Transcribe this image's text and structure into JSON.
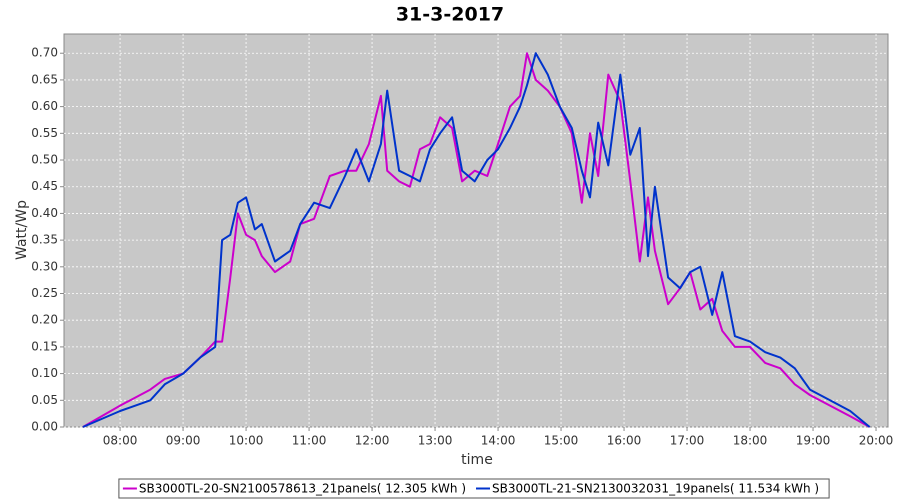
{
  "chart_data": {
    "type": "line",
    "title": "31-3-2017",
    "x_label": "time",
    "y_label": "Watt/Wp",
    "x": [
      7.41,
      8.0,
      8.48,
      8.71,
      9.0,
      9.27,
      9.51,
      9.62,
      9.75,
      9.87,
      10.0,
      10.14,
      10.25,
      10.46,
      10.7,
      10.86,
      11.08,
      11.33,
      11.57,
      11.75,
      11.95,
      12.14,
      12.24,
      12.43,
      12.6,
      12.76,
      12.92,
      13.08,
      13.27,
      13.43,
      13.63,
      13.83,
      14.0,
      14.19,
      14.35,
      14.46,
      14.6,
      14.79,
      14.98,
      15.17,
      15.33,
      15.46,
      15.59,
      15.75,
      15.94,
      16.1,
      16.25,
      16.38,
      16.49,
      16.7,
      16.89,
      17.05,
      17.21,
      17.4,
      17.56,
      17.76,
      18.0,
      18.24,
      18.48,
      18.71,
      18.95,
      19.27,
      19.59,
      19.9
    ],
    "series": [
      {
        "name": "SB3000TL-20-SN2100578613_21panels( 12.305 kWh )",
        "color": "#cc00cc",
        "values": [
          0.0,
          0.04,
          0.07,
          0.09,
          0.1,
          0.13,
          0.16,
          0.16,
          0.28,
          0.4,
          0.36,
          0.35,
          0.32,
          0.29,
          0.31,
          0.38,
          0.39,
          0.47,
          0.48,
          0.48,
          0.53,
          0.62,
          0.48,
          0.46,
          0.45,
          0.52,
          0.53,
          0.58,
          0.56,
          0.46,
          0.48,
          0.47,
          0.53,
          0.6,
          0.62,
          0.7,
          0.65,
          0.63,
          0.6,
          0.55,
          0.42,
          0.55,
          0.47,
          0.66,
          0.61,
          0.46,
          0.31,
          0.43,
          0.33,
          0.23,
          0.26,
          0.29,
          0.22,
          0.24,
          0.18,
          0.15,
          0.15,
          0.12,
          0.11,
          0.08,
          0.06,
          0.04,
          0.02,
          0.0
        ]
      },
      {
        "name": "SB3000TL-21-SN2130032031_19panels( 11.534 kWh )",
        "color": "#0033cc",
        "values": [
          0.0,
          0.03,
          0.05,
          0.08,
          0.1,
          0.13,
          0.15,
          0.35,
          0.36,
          0.42,
          0.43,
          0.37,
          0.38,
          0.31,
          0.33,
          0.38,
          0.42,
          0.41,
          0.47,
          0.52,
          0.46,
          0.53,
          0.63,
          0.48,
          0.47,
          0.46,
          0.52,
          0.55,
          0.58,
          0.48,
          0.46,
          0.5,
          0.52,
          0.56,
          0.6,
          0.64,
          0.7,
          0.66,
          0.6,
          0.56,
          0.48,
          0.43,
          0.57,
          0.49,
          0.66,
          0.51,
          0.56,
          0.32,
          0.45,
          0.28,
          0.26,
          0.29,
          0.3,
          0.21,
          0.29,
          0.17,
          0.16,
          0.14,
          0.13,
          0.11,
          0.07,
          0.05,
          0.03,
          0.0
        ]
      }
    ],
    "xlim": [
      7.11,
      20.19
    ],
    "ylim": [
      0,
      0.736
    ],
    "xticks": [
      {
        "value": 8,
        "label": "08:00"
      },
      {
        "value": 9,
        "label": "09:00"
      },
      {
        "value": 10,
        "label": "10:00"
      },
      {
        "value": 11,
        "label": "11:00"
      },
      {
        "value": 12,
        "label": "12:00"
      },
      {
        "value": 13,
        "label": "13:00"
      },
      {
        "value": 14,
        "label": "14:00"
      },
      {
        "value": 15,
        "label": "15:00"
      },
      {
        "value": 16,
        "label": "16:00"
      },
      {
        "value": 17,
        "label": "17:00"
      },
      {
        "value": 18,
        "label": "18:00"
      },
      {
        "value": 19,
        "label": "19:00"
      },
      {
        "value": 20,
        "label": "20:00"
      }
    ],
    "yticks": [
      {
        "value": 0,
        "label": "0.00"
      },
      0.05,
      {
        "value": 0.1,
        "label": "0.10"
      },
      0.15,
      {
        "value": 0.2,
        "label": "0.20"
      },
      0.25,
      {
        "value": 0.3,
        "label": "0.30"
      },
      0.35,
      {
        "value": 0.4,
        "label": "0.40"
      },
      0.45,
      {
        "value": 0.5,
        "label": "0.50"
      },
      0.55,
      {
        "value": 0.6,
        "label": "0.60"
      },
      0.65,
      {
        "value": 0.7,
        "label": "0.70"
      }
    ],
    "grid": true,
    "legend": "bottom"
  }
}
